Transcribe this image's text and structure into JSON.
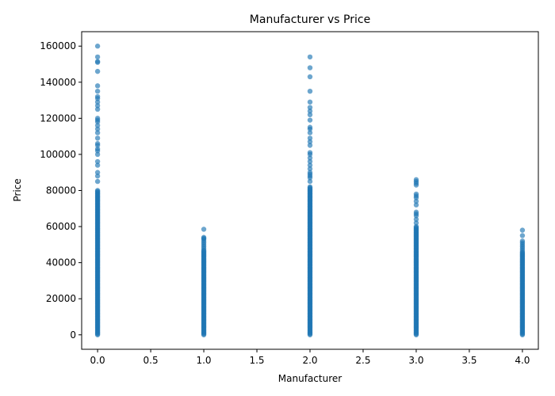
{
  "chart_data": {
    "type": "scatter",
    "title": "Manufacturer vs Price",
    "xlabel": "Manufacturer",
    "ylabel": "Price",
    "xlim": [
      -0.15,
      4.15
    ],
    "ylim": [
      -8000,
      168000
    ],
    "x_ticks": [
      0.0,
      0.5,
      1.0,
      1.5,
      2.0,
      2.5,
      3.0,
      3.5,
      4.0
    ],
    "x_tick_labels": [
      "0.0",
      "0.5",
      "1.0",
      "1.5",
      "2.0",
      "2.5",
      "3.0",
      "3.5",
      "4.0"
    ],
    "y_ticks": [
      0,
      20000,
      40000,
      60000,
      80000,
      100000,
      120000,
      140000,
      160000
    ],
    "y_tick_labels": [
      "0",
      "20000",
      "40000",
      "60000",
      "80000",
      "100000",
      "120000",
      "140000",
      "160000"
    ],
    "grid": false,
    "marker_color": "#1f77b4",
    "marker_alpha": 0.65,
    "series": [
      {
        "x": 0,
        "dense_range": [
          0,
          80000
        ],
        "prices": [
          85000,
          88000,
          90000,
          94000,
          96000,
          100000,
          102000,
          103000,
          105000,
          106000,
          109000,
          112000,
          114000,
          116000,
          118000,
          119000,
          120000,
          125000,
          127000,
          129000,
          131000,
          132000,
          135000,
          138000,
          146000,
          151000,
          151500,
          154000,
          160000
        ]
      },
      {
        "x": 1,
        "dense_range": [
          0,
          47000
        ],
        "prices": [
          48000,
          49000,
          50000,
          51000,
          52000,
          53000,
          53500,
          54000,
          58500
        ]
      },
      {
        "x": 2,
        "dense_range": [
          0,
          82000
        ],
        "prices": [
          85000,
          87000,
          88000,
          89000,
          90000,
          92000,
          94000,
          96000,
          98000,
          100000,
          101000,
          105000,
          107000,
          109000,
          112000,
          114000,
          115000,
          119000,
          122000,
          124000,
          126000,
          129000,
          135000,
          143000,
          148000,
          154000
        ]
      },
      {
        "x": 3,
        "dense_range": [
          0,
          60000
        ],
        "prices": [
          62000,
          64000,
          66000,
          67000,
          68000,
          72000,
          74000,
          76000,
          77000,
          78000,
          83000,
          84000,
          85000,
          86000
        ]
      },
      {
        "x": 4,
        "dense_range": [
          0,
          46000
        ],
        "prices": [
          47000,
          48000,
          49000,
          50000,
          51000,
          52000,
          55000,
          58000
        ]
      }
    ]
  }
}
